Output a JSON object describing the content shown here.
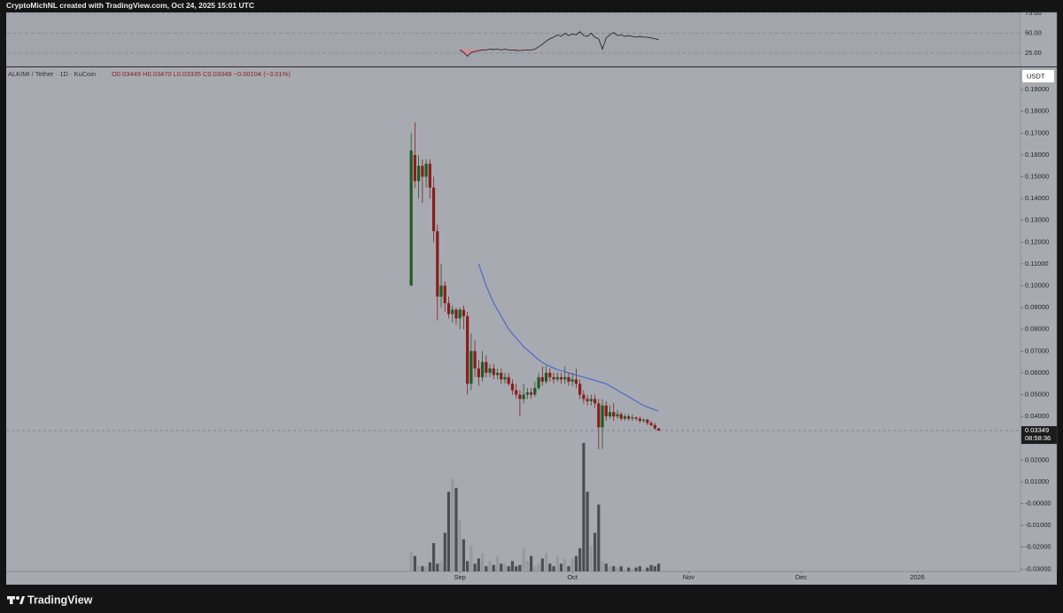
{
  "chart_data": {
    "type": "candlestick",
    "header": "CryptoMichNL created with TradingView.com, Oct 24, 2025 15:01 UTC",
    "symbol_label": "ALKIMI / Tether · 1D · KuCoin",
    "ohlc_label": "O0.03449 H0.03470 L0.03335 C0.03349 −0.00104 (−3.01%)",
    "currency": "USDT",
    "last_price_label": "0.03349",
    "countdown": "08:58:36",
    "watermark": "TradingView",
    "up_color": "#1e5c22",
    "down_color": "#8a1c1c",
    "volume_up_color": "#97999f",
    "volume_down_color": "#4d4e53",
    "xlim": [
      -121,
      149.5
    ],
    "xticks": [
      {
        "value": 0,
        "label": "Sep"
      },
      {
        "value": 30,
        "label": "Oct"
      },
      {
        "value": 61,
        "label": "Nov"
      },
      {
        "value": 91,
        "label": "Dec"
      },
      {
        "value": 122,
        "label": "2026"
      }
    ],
    "ylim": [
      -0.0311,
      0.2002
    ],
    "yticks": [
      {
        "value": -0.03,
        "label": "-0.03000"
      },
      {
        "value": -0.02,
        "label": "-0.02000"
      },
      {
        "value": -0.01,
        "label": "-0.01000"
      },
      {
        "value": 0,
        "label": "-0.00000"
      },
      {
        "value": 0.01,
        "label": "0.01000"
      },
      {
        "value": 0.02,
        "label": "0.02000"
      },
      {
        "value": 0.03,
        "label": "0.03000"
      },
      {
        "value": 0.04,
        "label": "0.04000"
      },
      {
        "value": 0.05,
        "label": "0.05000"
      },
      {
        "value": 0.06,
        "label": "0.06000"
      },
      {
        "value": 0.07,
        "label": "0.07000"
      },
      {
        "value": 0.08,
        "label": "0.08000"
      },
      {
        "value": 0.09,
        "label": "0.09000"
      },
      {
        "value": 0.1,
        "label": "0.10000"
      },
      {
        "value": 0.11,
        "label": "0.11000"
      },
      {
        "value": 0.12,
        "label": "0.12000"
      },
      {
        "value": 0.13,
        "label": "0.13000"
      },
      {
        "value": 0.14,
        "label": "0.14000"
      },
      {
        "value": 0.15,
        "label": "0.15000"
      },
      {
        "value": 0.16,
        "label": "0.16000"
      },
      {
        "value": 0.17,
        "label": "0.17000"
      },
      {
        "value": 0.18,
        "label": "0.18000"
      },
      {
        "value": 0.19,
        "label": "0.19000"
      }
    ],
    "x": [
      -13,
      -12,
      -11,
      -10,
      -9,
      -8,
      -7,
      -6,
      -5,
      -4,
      -3,
      -2,
      -1,
      0,
      1,
      2,
      3,
      4,
      5,
      6,
      7,
      8,
      9,
      10,
      11,
      12,
      13,
      14,
      15,
      16,
      17,
      18,
      19,
      20,
      21,
      22,
      23,
      24,
      25,
      26,
      27,
      28,
      29,
      30,
      31,
      32,
      33,
      34,
      35,
      36,
      37,
      38,
      39,
      40,
      41,
      42,
      43,
      44,
      45,
      46,
      47,
      48,
      49,
      50,
      51,
      52,
      53
    ],
    "open": [
      0.1,
      0.16,
      0.148,
      0.155,
      0.15,
      0.156,
      0.145,
      0.125,
      0.095,
      0.1,
      0.092,
      0.087,
      0.089,
      0.085,
      0.089,
      0.086,
      0.055,
      0.07,
      0.062,
      0.058,
      0.065,
      0.06,
      0.062,
      0.059,
      0.06,
      0.057,
      0.058,
      0.055,
      0.052,
      0.05,
      0.048,
      0.05,
      0.051,
      0.05,
      0.053,
      0.058,
      0.056,
      0.06,
      0.058,
      0.057,
      0.058,
      0.057,
      0.058,
      0.056,
      0.057,
      0.055,
      0.05,
      0.048,
      0.047,
      0.048,
      0.046,
      0.035,
      0.045,
      0.04,
      0.042,
      0.04,
      0.041,
      0.039,
      0.04,
      0.039,
      0.0395,
      0.039,
      0.038,
      0.0385,
      0.037,
      0.036,
      0.03449
    ],
    "high": [
      0.17,
      0.175,
      0.16,
      0.158,
      0.158,
      0.158,
      0.15,
      0.128,
      0.11,
      0.102,
      0.095,
      0.091,
      0.09,
      0.09,
      0.091,
      0.088,
      0.078,
      0.075,
      0.066,
      0.07,
      0.068,
      0.064,
      0.064,
      0.062,
      0.062,
      0.06,
      0.06,
      0.057,
      0.055,
      0.052,
      0.055,
      0.053,
      0.053,
      0.056,
      0.06,
      0.063,
      0.063,
      0.062,
      0.06,
      0.06,
      0.06,
      0.063,
      0.06,
      0.06,
      0.062,
      0.057,
      0.052,
      0.05,
      0.05,
      0.05,
      0.048,
      0.048,
      0.047,
      0.045,
      0.046,
      0.043,
      0.042,
      0.041,
      0.041,
      0.041,
      0.04,
      0.04,
      0.039,
      0.039,
      0.038,
      0.037,
      0.0347
    ],
    "low": [
      0.1,
      0.145,
      0.14,
      0.138,
      0.145,
      0.14,
      0.12,
      0.084,
      0.09,
      0.088,
      0.085,
      0.083,
      0.082,
      0.08,
      0.08,
      0.05,
      0.052,
      0.058,
      0.054,
      0.056,
      0.058,
      0.058,
      0.057,
      0.057,
      0.055,
      0.055,
      0.054,
      0.05,
      0.048,
      0.04,
      0.046,
      0.048,
      0.048,
      0.049,
      0.052,
      0.054,
      0.055,
      0.056,
      0.055,
      0.056,
      0.055,
      0.055,
      0.054,
      0.054,
      0.053,
      0.048,
      0.046,
      0.045,
      0.045,
      0.044,
      0.025,
      0.025,
      0.038,
      0.039,
      0.038,
      0.039,
      0.038,
      0.038,
      0.038,
      0.038,
      0.038,
      0.037,
      0.037,
      0.036,
      0.0355,
      0.034,
      0.03335
    ],
    "close": [
      0.162,
      0.148,
      0.155,
      0.15,
      0.156,
      0.145,
      0.125,
      0.095,
      0.1,
      0.092,
      0.087,
      0.089,
      0.085,
      0.089,
      0.086,
      0.055,
      0.07,
      0.062,
      0.058,
      0.065,
      0.06,
      0.062,
      0.059,
      0.06,
      0.057,
      0.058,
      0.055,
      0.052,
      0.05,
      0.048,
      0.05,
      0.051,
      0.05,
      0.053,
      0.058,
      0.056,
      0.06,
      0.058,
      0.057,
      0.058,
      0.057,
      0.058,
      0.056,
      0.057,
      0.055,
      0.05,
      0.048,
      0.047,
      0.048,
      0.046,
      0.035,
      0.045,
      0.04,
      0.042,
      0.04,
      0.041,
      0.039,
      0.04,
      0.039,
      0.0395,
      0.039,
      0.038,
      0.0385,
      0.037,
      0.036,
      0.0345,
      0.03349
    ],
    "volume": [
      15,
      12,
      4,
      4,
      4,
      7,
      22,
      6,
      8,
      30,
      62,
      72,
      65,
      40,
      25,
      8,
      20,
      6,
      10,
      14,
      4,
      8,
      5,
      12,
      6,
      6,
      4,
      8,
      4,
      5,
      18,
      8,
      12,
      4,
      6,
      10,
      14,
      6,
      4,
      12,
      6,
      10,
      4,
      10,
      12,
      18,
      100,
      62,
      20,
      30,
      52,
      8,
      6,
      4,
      4,
      3,
      4,
      2,
      3,
      2,
      3,
      4,
      2,
      3,
      5,
      4,
      6
    ],
    "ma": {
      "color": "#3a5fcd",
      "values": [
        null,
        null,
        null,
        null,
        null,
        null,
        null,
        null,
        null,
        null,
        null,
        null,
        null,
        null,
        null,
        null,
        null,
        null,
        0.11,
        0.105,
        0.1,
        0.096,
        0.092,
        0.089,
        0.086,
        0.083,
        0.08,
        0.078,
        0.076,
        0.074,
        0.072,
        0.0705,
        0.069,
        0.0675,
        0.066,
        0.0648,
        0.0638,
        0.063,
        0.0622,
        0.0615,
        0.061,
        0.0605,
        0.06,
        0.0595,
        0.059,
        0.0585,
        0.058,
        0.0575,
        0.057,
        0.0565,
        0.056,
        0.0555,
        0.055,
        0.054,
        0.053,
        0.052,
        0.051,
        0.05,
        0.049,
        0.048,
        0.047,
        0.046,
        0.045,
        0.0443,
        0.0437,
        0.043,
        0.0425
      ]
    },
    "rsi": {
      "color": "#1a1a1a",
      "oversold_level": 30,
      "oversold_color": "#d98a96",
      "ylim": [
        8.3,
        76.1
      ],
      "yticks": [
        {
          "value": 25,
          "label": "25.00"
        },
        {
          "value": 50,
          "label": "50.00"
        },
        {
          "value": 75,
          "label": "75.00"
        }
      ],
      "values": [
        null,
        null,
        null,
        null,
        null,
        null,
        null,
        null,
        null,
        null,
        null,
        null,
        null,
        29,
        26,
        21,
        26,
        27,
        28,
        29,
        29,
        30,
        29.5,
        30,
        29,
        30,
        29,
        29,
        28.5,
        28,
        29,
        29,
        29,
        30,
        33,
        36,
        40,
        43,
        45,
        48,
        46,
        50,
        47,
        49,
        48,
        52,
        47,
        46,
        50,
        45,
        43,
        30,
        44,
        48,
        51,
        47,
        48,
        46,
        47,
        46,
        45,
        46,
        45,
        45,
        44,
        43,
        42
      ]
    }
  }
}
